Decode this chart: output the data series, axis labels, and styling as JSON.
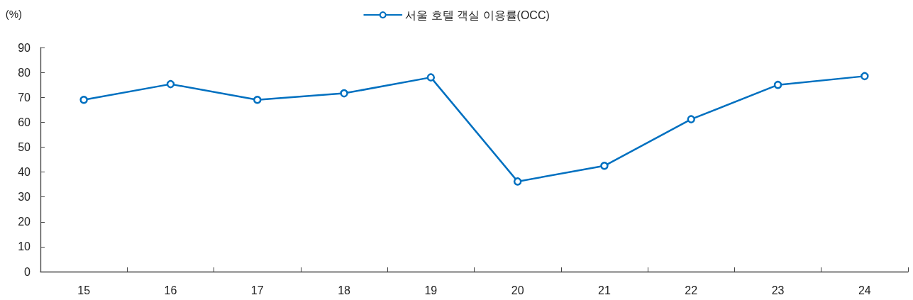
{
  "chart_data": {
    "type": "line",
    "ylabel": "(%)",
    "categories": [
      "15",
      "16",
      "17",
      "18",
      "19",
      "20",
      "21",
      "22",
      "23",
      "24"
    ],
    "series": [
      {
        "name": "서울 호텔 객실 이용률(OCC)",
        "color": "#0070c0",
        "values": [
          69.0,
          75.3,
          69.0,
          71.6,
          78.0,
          36.2,
          42.5,
          61.2,
          75.0,
          78.5
        ]
      }
    ],
    "ylim": [
      0,
      90
    ],
    "yticks": [
      0,
      10,
      20,
      30,
      40,
      50,
      60,
      70,
      80,
      90
    ],
    "grid": false,
    "legend": "top",
    "marker": "circle",
    "line_style": "solid"
  }
}
